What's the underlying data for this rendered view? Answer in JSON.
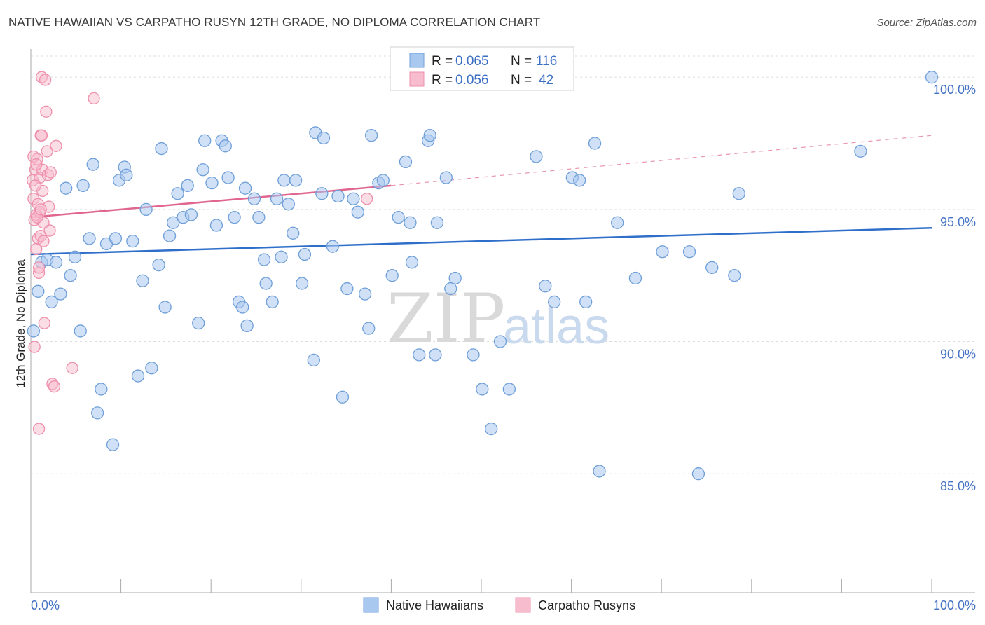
{
  "title": "NATIVE HAWAIIAN VS CARPATHO RUSYN 12TH GRADE, NO DIPLOMA CORRELATION CHART",
  "source": "Source: ZipAtlas.com",
  "watermark": {
    "zip": "ZIP",
    "atlas": "atlas"
  },
  "legend": {
    "rows": [
      {
        "r_label": "R =",
        "r_value": "0.065",
        "n_label": "N =",
        "n_value": "116"
      },
      {
        "r_label": "R =",
        "r_value": "0.056",
        "n_label": "N =",
        "n_value": "42"
      }
    ]
  },
  "bottom_legend": [
    "Native Hawaiians",
    "Carpatho Rusyns"
  ],
  "colors": {
    "blue_fill": "#a9c8f0",
    "blue_stroke": "#6f9fd8",
    "blue_line": "#2f6fca",
    "pink_fill": "#f7bccd",
    "pink_stroke": "#ee8fab",
    "pink_line": "#e06690",
    "axis_text": "#4472c4",
    "grid": "#dddddd"
  },
  "chart_data": {
    "type": "scatter",
    "title": "NATIVE HAWAIIAN VS CARPATHO RUSYN 12TH GRADE, NO DIPLOMA CORRELATION CHART",
    "xlabel": "",
    "ylabel": "12th Grade, No Diploma",
    "xlim": [
      0,
      100
    ],
    "ylim": [
      80.5,
      100.8
    ],
    "x_tick_labels": [
      "0.0%",
      "100.0%"
    ],
    "y_ticks": [
      85,
      90,
      95,
      100
    ],
    "y_tick_labels": [
      "85.0%",
      "90.0%",
      "95.0%",
      "100.0%"
    ],
    "grid": true,
    "legend_position": "top-center",
    "series": [
      {
        "name": "Native Hawaiians",
        "R": 0.065,
        "N": 116,
        "trend": {
          "x": [
            0,
            100
          ],
          "y": [
            93.3,
            94.3
          ]
        },
        "points": [
          [
            0.3,
            90.4
          ],
          [
            0.8,
            91.9
          ],
          [
            1.2,
            93.0
          ],
          [
            1.8,
            93.1
          ],
          [
            2.3,
            91.5
          ],
          [
            2.8,
            93.0
          ],
          [
            3.3,
            91.8
          ],
          [
            3.9,
            95.8
          ],
          [
            4.4,
            92.5
          ],
          [
            4.9,
            93.2
          ],
          [
            5.5,
            90.4
          ],
          [
            5.8,
            95.9
          ],
          [
            6.5,
            93.9
          ],
          [
            6.9,
            96.7
          ],
          [
            7.8,
            88.2
          ],
          [
            7.4,
            87.3
          ],
          [
            8.4,
            93.7
          ],
          [
            9.1,
            86.1
          ],
          [
            9.4,
            93.9
          ],
          [
            9.8,
            96.1
          ],
          [
            10.4,
            96.6
          ],
          [
            10.6,
            96.3
          ],
          [
            11.3,
            93.8
          ],
          [
            11.9,
            88.7
          ],
          [
            12.4,
            92.3
          ],
          [
            12.8,
            95.0
          ],
          [
            13.4,
            89.0
          ],
          [
            14.2,
            92.9
          ],
          [
            14.5,
            97.3
          ],
          [
            14.9,
            91.3
          ],
          [
            15.4,
            94.0
          ],
          [
            15.8,
            94.5
          ],
          [
            16.3,
            95.6
          ],
          [
            16.9,
            94.7
          ],
          [
            17.4,
            95.9
          ],
          [
            17.8,
            94.8
          ],
          [
            18.6,
            90.7
          ],
          [
            19.1,
            96.5
          ],
          [
            19.3,
            97.6
          ],
          [
            20.1,
            96.0
          ],
          [
            20.6,
            94.4
          ],
          [
            21.2,
            97.6
          ],
          [
            21.6,
            97.4
          ],
          [
            21.9,
            96.2
          ],
          [
            22.6,
            94.7
          ],
          [
            23.1,
            91.5
          ],
          [
            23.5,
            91.3
          ],
          [
            23.8,
            95.8
          ],
          [
            24.0,
            90.6
          ],
          [
            24.8,
            95.4
          ],
          [
            25.3,
            94.7
          ],
          [
            25.9,
            93.1
          ],
          [
            26.1,
            92.2
          ],
          [
            26.8,
            91.5
          ],
          [
            27.3,
            95.4
          ],
          [
            27.8,
            93.2
          ],
          [
            28.1,
            96.1
          ],
          [
            28.6,
            95.2
          ],
          [
            29.1,
            94.1
          ],
          [
            29.4,
            96.1
          ],
          [
            30.1,
            92.2
          ],
          [
            30.4,
            93.3
          ],
          [
            31.4,
            89.3
          ],
          [
            31.6,
            97.9
          ],
          [
            32.3,
            95.6
          ],
          [
            32.5,
            97.7
          ],
          [
            33.5,
            93.6
          ],
          [
            34.1,
            95.5
          ],
          [
            34.6,
            87.9
          ],
          [
            35.1,
            92.0
          ],
          [
            35.8,
            95.4
          ],
          [
            36.3,
            94.9
          ],
          [
            37.1,
            91.8
          ],
          [
            37.5,
            90.5
          ],
          [
            37.8,
            97.8
          ],
          [
            38.6,
            96.0
          ],
          [
            39.1,
            96.1
          ],
          [
            40.1,
            92.5
          ],
          [
            40.8,
            94.7
          ],
          [
            41.1,
            100.0
          ],
          [
            41.6,
            96.8
          ],
          [
            42.1,
            94.5
          ],
          [
            42.3,
            93.0
          ],
          [
            43.1,
            89.5
          ],
          [
            44.1,
            97.6
          ],
          [
            44.3,
            97.8
          ],
          [
            44.9,
            89.5
          ],
          [
            45.1,
            94.5
          ],
          [
            46.1,
            96.2
          ],
          [
            46.6,
            92.0
          ],
          [
            47.1,
            92.4
          ],
          [
            49.1,
            89.5
          ],
          [
            50.1,
            88.2
          ],
          [
            51.1,
            86.7
          ],
          [
            52.1,
            90.0
          ],
          [
            53.1,
            88.2
          ],
          [
            54.1,
            100.0
          ],
          [
            56.1,
            97.0
          ],
          [
            57.1,
            92.1
          ],
          [
            58.1,
            91.5
          ],
          [
            60.1,
            96.2
          ],
          [
            60.9,
            96.1
          ],
          [
            61.6,
            91.5
          ],
          [
            62.6,
            97.5
          ],
          [
            63.1,
            85.1
          ],
          [
            65.1,
            94.5
          ],
          [
            67.1,
            92.4
          ],
          [
            70.1,
            93.4
          ],
          [
            73.1,
            93.4
          ],
          [
            74.1,
            85.0
          ],
          [
            75.6,
            92.8
          ],
          [
            78.1,
            92.5
          ],
          [
            78.6,
            95.6
          ],
          [
            92.1,
            97.2
          ],
          [
            100.0,
            100.0
          ]
        ]
      },
      {
        "name": "Carpatho Rusyns",
        "R": 0.056,
        "N": 42,
        "trend": {
          "x": [
            0,
            40
          ],
          "y": [
            94.7,
            95.9
          ]
        },
        "trend_extension": {
          "x": [
            40,
            100
          ],
          "y": [
            95.9,
            97.8
          ]
        },
        "points": [
          [
            0.2,
            96.1
          ],
          [
            0.3,
            95.4
          ],
          [
            0.4,
            94.6
          ],
          [
            0.5,
            96.5
          ],
          [
            0.6,
            93.5
          ],
          [
            0.6,
            94.8
          ],
          [
            0.7,
            96.9
          ],
          [
            0.8,
            95.2
          ],
          [
            0.8,
            93.9
          ],
          [
            0.9,
            92.6
          ],
          [
            1.0,
            96.2
          ],
          [
            1.0,
            94.9
          ],
          [
            1.1,
            97.8
          ],
          [
            1.1,
            94.0
          ],
          [
            1.2,
            100.0
          ],
          [
            1.3,
            96.5
          ],
          [
            1.3,
            95.7
          ],
          [
            1.4,
            94.5
          ],
          [
            1.4,
            93.8
          ],
          [
            1.5,
            90.7
          ],
          [
            1.6,
            99.9
          ],
          [
            1.7,
            98.7
          ],
          [
            1.8,
            97.2
          ],
          [
            1.9,
            96.3
          ],
          [
            2.0,
            95.1
          ],
          [
            2.1,
            94.2
          ],
          [
            2.2,
            96.4
          ],
          [
            2.4,
            88.4
          ],
          [
            2.6,
            88.3
          ],
          [
            2.8,
            97.4
          ],
          [
            0.4,
            89.8
          ],
          [
            0.9,
            86.7
          ],
          [
            4.6,
            89.0
          ],
          [
            7.0,
            99.2
          ],
          [
            1.2,
            97.8
          ],
          [
            0.5,
            95.9
          ],
          [
            0.7,
            94.7
          ],
          [
            1.1,
            95.0
          ],
          [
            0.3,
            97.0
          ],
          [
            0.9,
            92.8
          ],
          [
            37.3,
            95.4
          ],
          [
            0.6,
            96.7
          ]
        ]
      }
    ]
  }
}
